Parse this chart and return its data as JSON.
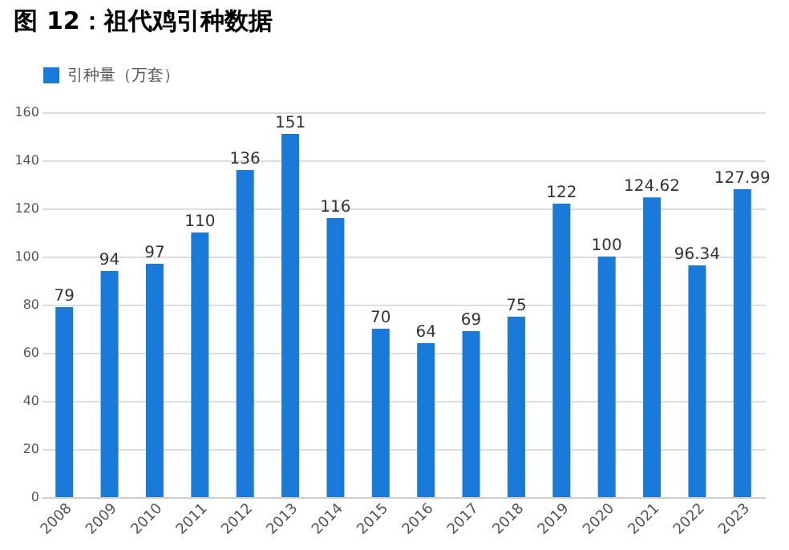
{
  "chart_data": {
    "type": "bar",
    "title": "图 12：祖代鸡引种数据",
    "categories": [
      "2008",
      "2009",
      "2010",
      "2011",
      "2012",
      "2013",
      "2014",
      "2015",
      "2016",
      "2017",
      "2018",
      "2019",
      "2020",
      "2021",
      "2022",
      "2023"
    ],
    "series": [
      {
        "name": "引种量（万套）",
        "color": "#1a7ad9",
        "values": [
          79,
          94,
          97,
          110,
          136,
          151,
          116,
          70,
          64,
          69,
          75,
          122,
          100,
          124.62,
          96.34,
          127.99
        ]
      }
    ],
    "ylim": [
      0,
      160
    ],
    "yticks": [
      0,
      20,
      40,
      60,
      80,
      100,
      120,
      140,
      160
    ],
    "grid": "y",
    "legend": "top",
    "data_labels": true
  }
}
